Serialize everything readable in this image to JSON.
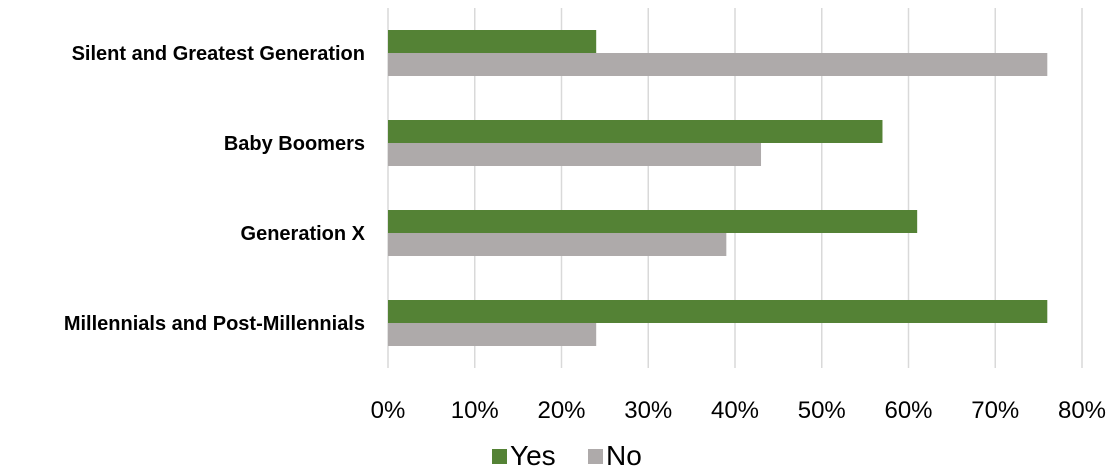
{
  "chart_data": {
    "type": "bar",
    "orientation": "horizontal",
    "categories": [
      "Silent and Greatest Generation",
      "Baby Boomers",
      "Generation X",
      "Millennials and Post-Millennials"
    ],
    "series": [
      {
        "name": "Yes",
        "values": [
          24,
          57,
          61,
          76
        ],
        "color": "#548235"
      },
      {
        "name": "No",
        "values": [
          76,
          43,
          39,
          24
        ],
        "color": "#AEAAAA"
      }
    ],
    "xlim": [
      0,
      80
    ],
    "x_ticks": [
      "0%",
      "10%",
      "20%",
      "30%",
      "40%",
      "50%",
      "60%",
      "70%",
      "80%"
    ],
    "value_unit": "%",
    "grid": "vertical",
    "legend_position": "bottom"
  }
}
